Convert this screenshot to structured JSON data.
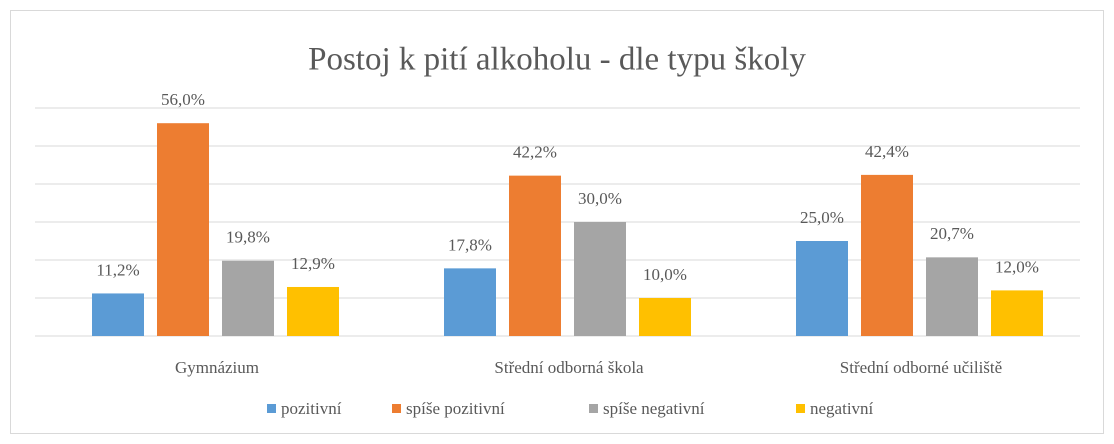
{
  "chart_data": {
    "type": "bar",
    "title": "Postoj k pití alkoholu - dle typu školy",
    "categories": [
      "Gymnázium",
      "Střední odborná škola",
      "Střední odborné učiliště"
    ],
    "series": [
      {
        "name": "pozitivní",
        "color": "#5b9bd5",
        "values": [
          11.2,
          17.8,
          25.0
        ],
        "value_labels": [
          "11,2%",
          "17,8%",
          "25,0%"
        ]
      },
      {
        "name": "spíše pozitivní",
        "color": "#ed7d31",
        "values": [
          56.0,
          42.2,
          42.4
        ],
        "value_labels": [
          "56,0%",
          "42,2%",
          "42,4%"
        ]
      },
      {
        "name": "spíše negativní",
        "color": "#a5a5a5",
        "values": [
          19.8,
          30.0,
          20.7
        ],
        "value_labels": [
          "19,8%",
          "30,0%",
          "20,7%"
        ]
      },
      {
        "name": "negativní",
        "color": "#ffc000",
        "values": [
          12.9,
          10.0,
          12.0
        ],
        "value_labels": [
          "12,9%",
          "10,0%",
          "12,0%"
        ]
      }
    ],
    "ylim": [
      0,
      60
    ],
    "yticks": [
      0,
      10,
      20,
      30,
      40,
      50,
      60
    ],
    "grid": true,
    "legend": "bottom"
  }
}
